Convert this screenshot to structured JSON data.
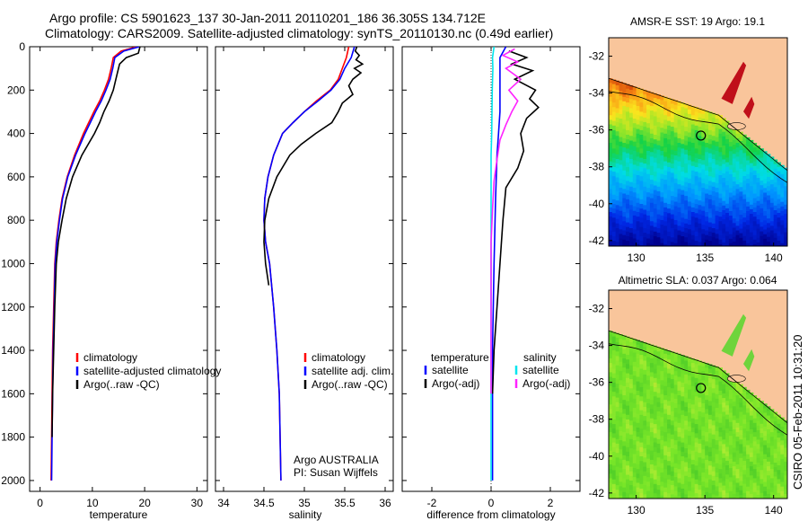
{
  "header": {
    "line1": "Argo profile: CS 5901623_137 30-Jan-2011 20110201_186 36.305S 134.712E",
    "line2": "Climatology: CARS2009. Satellite-adjusted climatology: synTS_20110130.nc (0.49d earlier)"
  },
  "footer": "CSIRO 05-Feb-2011 10:31:20",
  "colors": {
    "climatology": "#ff0000",
    "satellite": "#0000ff",
    "argo": "#000000",
    "sal_satellite": "#00e5ee",
    "sal_argo": "#ff22ff",
    "land": "#f9c59b"
  },
  "chart_data": [
    {
      "type": "line",
      "xlabel": "temperature",
      "xlim": [
        -2,
        32
      ],
      "xticks": [
        0,
        10,
        20,
        30
      ],
      "ylim": [
        2050,
        0
      ],
      "yticks": [
        0,
        200,
        400,
        600,
        800,
        1000,
        1200,
        1400,
        1600,
        1800,
        2000
      ],
      "legend": [
        "climatology",
        "satellite-adjusted climatology",
        "Argo(..raw -QC)"
      ],
      "series": [
        {
          "name": "climatology",
          "color": "#ff0000",
          "x": [
            18.5,
            15.5,
            14,
            13.6,
            13.1,
            12.3,
            11.4,
            10.3,
            9.3,
            8.3,
            6.6,
            5.2,
            4.2,
            3.6,
            3.1,
            2.8,
            2.6,
            2.4,
            2.3,
            2.2,
            2.1
          ],
          "y": [
            0,
            20,
            50,
            100,
            150,
            200,
            250,
            300,
            350,
            400,
            500,
            600,
            700,
            800,
            900,
            1000,
            1200,
            1400,
            1600,
            1800,
            2000
          ]
        },
        {
          "name": "satellite-adjusted climatology",
          "color": "#0000ff",
          "x": [
            19,
            16,
            14.3,
            13.9,
            13.4,
            12.6,
            11.7,
            10.6,
            9.6,
            8.6,
            6.8,
            5.3,
            4.3,
            3.7,
            3.2,
            2.9,
            2.7,
            2.5,
            2.4,
            2.3,
            2.2
          ],
          "y": [
            0,
            20,
            50,
            100,
            150,
            200,
            250,
            300,
            350,
            400,
            500,
            600,
            700,
            800,
            900,
            1000,
            1200,
            1400,
            1600,
            1800,
            2000
          ]
        },
        {
          "name": "Argo(..raw -QC)",
          "color": "#000000",
          "x": [
            19.1,
            18.8,
            16.5,
            15.2,
            14.8,
            14.4,
            14,
            13.2,
            12.2,
            11.4,
            10.4,
            8,
            6.2,
            5,
            4.2,
            3.5,
            3.1,
            2.8,
            2.6,
            2.4,
            2.3
          ],
          "y": [
            0,
            30,
            50,
            80,
            120,
            160,
            200,
            250,
            300,
            350,
            400,
            500,
            600,
            700,
            800,
            900,
            1000,
            1200,
            1400,
            1600,
            1800
          ]
        }
      ]
    },
    {
      "type": "line",
      "xlabel": "salinity",
      "xlim": [
        33.9,
        36.1
      ],
      "xticks": [
        34,
        34.5,
        35,
        35.5,
        36
      ],
      "ylim": [
        2050,
        0
      ],
      "legend": [
        "climatology",
        "satellite adj. clim.",
        "Argo(..raw -QC)"
      ],
      "annotations": [
        "Argo AUSTRALIA",
        "PI: Susan Wijffels"
      ],
      "series": [
        {
          "name": "climatology",
          "color": "#ff0000",
          "x": [
            35.55,
            35.52,
            35.47,
            35.42,
            35.32,
            35.15,
            35.0,
            34.86,
            34.73,
            34.62,
            34.55,
            34.51,
            34.5,
            34.52,
            34.57,
            34.62,
            34.66,
            34.69,
            34.71
          ],
          "y": [
            0,
            50,
            100,
            150,
            200,
            250,
            300,
            350,
            400,
            500,
            600,
            700,
            800,
            900,
            1000,
            1200,
            1400,
            1600,
            2000
          ]
        },
        {
          "name": "satellite adj. clim.",
          "color": "#0000ff",
          "x": [
            35.62,
            35.58,
            35.5,
            35.44,
            35.33,
            35.17,
            35.0,
            34.86,
            34.73,
            34.62,
            34.55,
            34.51,
            34.5,
            34.52,
            34.57,
            34.62,
            34.66,
            34.69,
            34.71
          ],
          "y": [
            0,
            50,
            100,
            150,
            200,
            250,
            300,
            350,
            400,
            500,
            600,
            700,
            800,
            900,
            1000,
            1200,
            1400,
            1600,
            2000
          ]
        },
        {
          "name": "Argo(..raw -QC)",
          "color": "#000000",
          "x": [
            35.65,
            35.63,
            35.68,
            35.64,
            35.72,
            35.62,
            35.7,
            35.6,
            35.55,
            35.6,
            35.47,
            35.42,
            35.34,
            35.14,
            34.96,
            34.82,
            34.66,
            34.56,
            34.51,
            34.5,
            34.52,
            34.56
          ],
          "y": [
            0,
            20,
            40,
            60,
            80,
            100,
            120,
            150,
            180,
            220,
            260,
            300,
            350,
            400,
            450,
            500,
            600,
            700,
            800,
            900,
            1000,
            1100
          ]
        }
      ]
    },
    {
      "type": "line",
      "xlabel": "difference from climatology",
      "xlim": [
        -3,
        3
      ],
      "xticks": [
        -2,
        0,
        2
      ],
      "ylim": [
        2050,
        0
      ],
      "legend": {
        "temperature": [
          "satellite",
          "Argo(-adj)"
        ],
        "salinity": [
          "satellite",
          "Argo(-adj)"
        ]
      },
      "series": [
        {
          "name": "temperature satellite",
          "color": "#0000ff",
          "x": [
            0.5,
            0.3,
            0.3,
            0.3,
            0.3,
            0.25,
            0.2,
            0.15,
            0.1,
            0.05,
            0.05,
            0.05
          ],
          "y": [
            0,
            50,
            100,
            200,
            300,
            400,
            500,
            700,
            1000,
            1400,
            1800,
            2000
          ]
        },
        {
          "name": "temperature Argo(-adj)",
          "color": "#000000",
          "x": [
            0.6,
            1.2,
            0.7,
            1.4,
            0.8,
            1.5,
            1.3,
            1.6,
            1.2,
            1.0,
            1.1,
            0.9,
            0.5,
            0.4,
            0.3,
            0.2,
            0.1,
            0.05
          ],
          "y": [
            20,
            50,
            80,
            110,
            150,
            200,
            240,
            280,
            330,
            400,
            480,
            560,
            650,
            800,
            1000,
            1200,
            1400,
            1600
          ]
        },
        {
          "name": "salinity satellite",
          "color": "#00e5ee",
          "x": [
            0.1,
            0.05,
            0.06,
            0.04,
            0.03,
            0.02,
            0.0,
            0.0,
            0.0,
            0.0,
            0.0,
            0.0
          ],
          "y": [
            0,
            50,
            100,
            200,
            300,
            400,
            500,
            700,
            1000,
            1400,
            1800,
            2000
          ]
        },
        {
          "name": "salinity Argo(-adj)",
          "color": "#ff22ff",
          "x": [
            0.8,
            0.4,
            0.9,
            0.5,
            1.0,
            0.6,
            0.9,
            0.7,
            0.5,
            0.3,
            0.2,
            0.1,
            0.05,
            0.0,
            0.0,
            0.0,
            0.0
          ],
          "y": [
            10,
            40,
            70,
            100,
            150,
            200,
            250,
            300,
            360,
            430,
            520,
            620,
            750,
            900,
            1100,
            1300,
            1600
          ]
        }
      ]
    },
    {
      "type": "heatmap",
      "title": "AMSR-E SST: 19 Argo: 19.1",
      "xlim": [
        128,
        141
      ],
      "ylim": [
        -42.3,
        -31
      ],
      "xticks": [
        130,
        135,
        140
      ],
      "yticks": [
        -32,
        -34,
        -36,
        -38,
        -40,
        -42
      ],
      "marker": {
        "lon": 134.712,
        "lat": -36.305
      }
    },
    {
      "type": "heatmap",
      "title": "Altimetric SLA: 0.037 Argo: 0.064",
      "xlim": [
        128,
        141
      ],
      "ylim": [
        -42.3,
        -31
      ],
      "xticks": [
        130,
        135,
        140
      ],
      "yticks": [
        -32,
        -34,
        -36,
        -38,
        -40,
        -42
      ],
      "marker": {
        "lon": 134.712,
        "lat": -36.305
      }
    }
  ]
}
